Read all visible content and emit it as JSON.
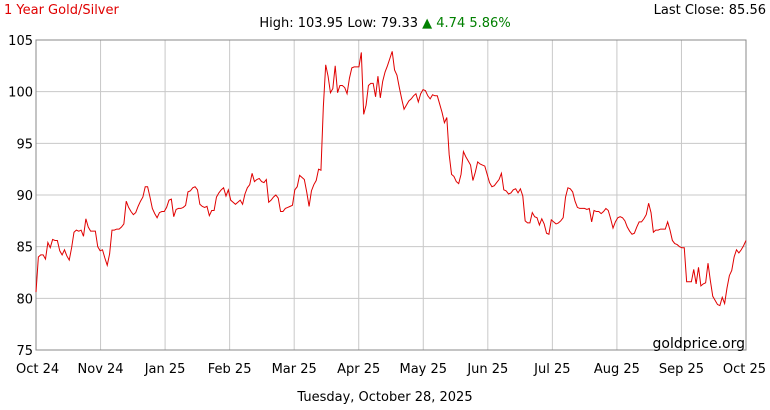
{
  "header": {
    "title": "1 Year Gold/Silver",
    "last_close_label": "Last Close:",
    "last_close_value": "85.56",
    "high_label": "High:",
    "high_value": "103.95",
    "low_label": "Low:",
    "low_value": "79.33",
    "change_arrow": "▲",
    "change_value": "4.74",
    "change_percent": "5.86%"
  },
  "footer": {
    "date": "Tuesday, October 28, 2025"
  },
  "watermark": "goldprice.org",
  "colors": {
    "line": "#e00000",
    "grid": "#c8c8c8",
    "up": "#008000"
  },
  "chart_data": {
    "type": "line",
    "title": "1 Year Gold/Silver",
    "xlabel": "",
    "ylabel": "",
    "grid": true,
    "ylim": [
      75,
      105
    ],
    "y_ticks": [
      75,
      80,
      85,
      90,
      95,
      100,
      105
    ],
    "x_tick_labels": [
      "Oct 24",
      "Nov 24",
      "Jan 25",
      "Feb 25",
      "Mar 25",
      "Apr 25",
      "May 25",
      "Jun 25",
      "Jul 25",
      "Aug 25",
      "Sep 25",
      "Oct 25"
    ],
    "series": [
      {
        "values": [
          80.6,
          84.0,
          84.2,
          84.2,
          83.8,
          85.4,
          84.9,
          85.7,
          85.6,
          85.6,
          84.6,
          84.2,
          84.7,
          84.1,
          83.7,
          84.9,
          86.4,
          86.6,
          86.5,
          86.6,
          86.0,
          87.7,
          86.9,
          86.5,
          86.5,
          86.5,
          85.0,
          84.6,
          84.7,
          83.9,
          83.2,
          84.3,
          86.6,
          86.6,
          86.7,
          86.7,
          86.9,
          87.2,
          89.4,
          88.8,
          88.4,
          88.1,
          88.3,
          88.9,
          89.4,
          89.8,
          90.8,
          90.8,
          89.8,
          88.7,
          88.2,
          87.8,
          88.3,
          88.4,
          88.4,
          88.8,
          89.5,
          89.6,
          87.9,
          88.6,
          88.7,
          88.7,
          88.8,
          89.0,
          90.3,
          90.4,
          90.7,
          90.8,
          90.5,
          89.1,
          88.9,
          88.8,
          88.9,
          88.0,
          88.5,
          88.5,
          89.8,
          90.2,
          90.5,
          90.7,
          89.9,
          90.5,
          89.5,
          89.3,
          89.1,
          89.3,
          89.5,
          89.1,
          90.1,
          90.7,
          91.0,
          92.1,
          91.3,
          91.5,
          91.6,
          91.3,
          91.2,
          91.5,
          89.3,
          89.5,
          89.8,
          90.0,
          89.7,
          88.4,
          88.4,
          88.7,
          88.8,
          88.9,
          89.0,
          90.5,
          90.8,
          91.9,
          91.7,
          91.5,
          90.3,
          88.9,
          90.4,
          91.0,
          91.4,
          92.5,
          92.4,
          98.5,
          102.6,
          101.5,
          99.9,
          100.3,
          102.5,
          99.9,
          100.6,
          100.6,
          100.4,
          99.8,
          101.3,
          102.3,
          102.4,
          102.4,
          102.4,
          103.8,
          97.8,
          98.7,
          100.6,
          100.8,
          100.8,
          99.5,
          101.5,
          99.4,
          101.0,
          101.9,
          102.5,
          103.2,
          103.9,
          102.1,
          101.6,
          100.4,
          99.3,
          98.3,
          98.7,
          99.1,
          99.3,
          99.6,
          99.8,
          99.0,
          99.8,
          100.2,
          100.1,
          99.6,
          99.3,
          99.7,
          99.6,
          99.6,
          98.8,
          98.0,
          97.0,
          97.5,
          93.9,
          92.0,
          91.8,
          91.3,
          91.1,
          92.0,
          94.2,
          93.7,
          93.3,
          92.9,
          91.4,
          92.2,
          93.2,
          93.0,
          92.9,
          92.8,
          92.0,
          91.2,
          90.8,
          90.9,
          91.2,
          91.5,
          92.1,
          90.5,
          90.4,
          90.1,
          90.2,
          90.5,
          90.6,
          90.2,
          90.6,
          89.9,
          87.5,
          87.3,
          87.3,
          88.3,
          87.9,
          87.8,
          87.1,
          87.7,
          87.2,
          86.3,
          86.2,
          87.6,
          87.4,
          87.2,
          87.3,
          87.5,
          87.8,
          89.8,
          90.7,
          90.6,
          90.3,
          89.4,
          88.8,
          88.7,
          88.7,
          88.7,
          88.6,
          88.7,
          87.4,
          88.5,
          88.4,
          88.4,
          88.2,
          88.4,
          88.7,
          88.5,
          87.7,
          86.8,
          87.4,
          87.8,
          87.9,
          87.8,
          87.5,
          86.9,
          86.5,
          86.2,
          86.3,
          86.9,
          87.4,
          87.4,
          87.7,
          88.1,
          89.2,
          88.3,
          86.4,
          86.6,
          86.6,
          86.7,
          86.7,
          86.7,
          87.4,
          86.6,
          85.6,
          85.3,
          85.2,
          85.0,
          84.9,
          84.9,
          81.6,
          81.6,
          81.6,
          82.8,
          81.4,
          83.0,
          81.2,
          81.4,
          81.5,
          83.4,
          81.7,
          80.2,
          79.8,
          79.4,
          79.3,
          80.1,
          79.5,
          81.0,
          82.2,
          82.7,
          84.0,
          84.7,
          84.4,
          84.7,
          85.1,
          85.6
        ]
      }
    ]
  }
}
